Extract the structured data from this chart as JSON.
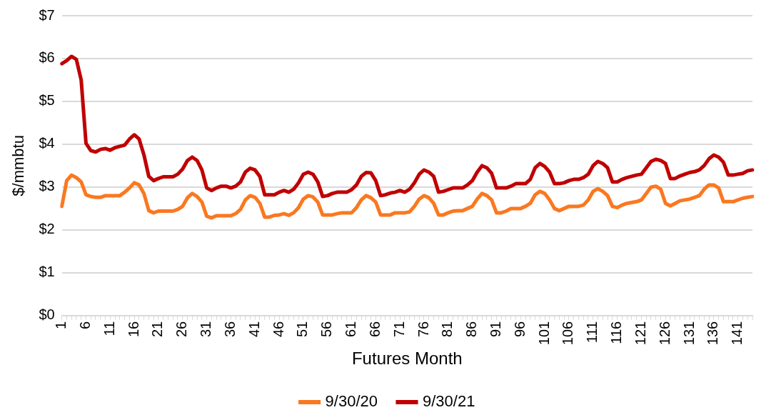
{
  "chart_data": {
    "type": "line",
    "xlabel": "Futures Month",
    "ylabel": "$/mmbtu",
    "categories": [
      "1",
      null,
      null,
      null,
      null,
      "6",
      null,
      null,
      null,
      null,
      "11",
      null,
      null,
      null,
      null,
      "16",
      null,
      null,
      null,
      null,
      "21",
      null,
      null,
      null,
      null,
      "26",
      null,
      null,
      null,
      null,
      "31",
      null,
      null,
      null,
      null,
      "36",
      null,
      null,
      null,
      null,
      "41",
      null,
      null,
      null,
      null,
      "46",
      null,
      null,
      null,
      null,
      "51",
      null,
      null,
      null,
      null,
      "56",
      null,
      null,
      null,
      null,
      "61",
      null,
      null,
      null,
      null,
      "66",
      null,
      null,
      null,
      null,
      "71",
      null,
      null,
      null,
      null,
      "76",
      null,
      null,
      null,
      null,
      "81",
      null,
      null,
      null,
      null,
      "86",
      null,
      null,
      null,
      null,
      "91",
      null,
      null,
      null,
      null,
      "96",
      null,
      null,
      null,
      null,
      "101",
      null,
      null,
      null,
      null,
      "106",
      null,
      null,
      null,
      null,
      "111",
      null,
      null,
      null,
      null,
      "116",
      null,
      null,
      null,
      null,
      "121",
      null,
      null,
      null,
      null,
      "126",
      null,
      null,
      null,
      null,
      "131",
      null,
      null,
      null,
      null,
      "136",
      null,
      null,
      null,
      null,
      "141",
      null,
      null,
      null
    ],
    "series": [
      {
        "name": "9/30/20",
        "color": "#fa7820",
        "values": [
          2.55,
          3.15,
          3.28,
          3.22,
          3.12,
          2.82,
          2.78,
          2.76,
          2.76,
          2.8,
          2.8,
          2.8,
          2.8,
          2.88,
          2.98,
          3.1,
          3.05,
          2.85,
          2.45,
          2.4,
          2.44,
          2.44,
          2.44,
          2.44,
          2.48,
          2.55,
          2.75,
          2.85,
          2.78,
          2.65,
          2.32,
          2.28,
          2.33,
          2.33,
          2.33,
          2.33,
          2.38,
          2.48,
          2.7,
          2.8,
          2.76,
          2.62,
          2.3,
          2.3,
          2.34,
          2.35,
          2.38,
          2.34,
          2.4,
          2.52,
          2.72,
          2.8,
          2.77,
          2.65,
          2.35,
          2.35,
          2.35,
          2.38,
          2.4,
          2.4,
          2.4,
          2.52,
          2.7,
          2.8,
          2.75,
          2.65,
          2.35,
          2.35,
          2.35,
          2.4,
          2.4,
          2.4,
          2.42,
          2.55,
          2.72,
          2.8,
          2.75,
          2.62,
          2.35,
          2.35,
          2.4,
          2.44,
          2.45,
          2.45,
          2.5,
          2.55,
          2.72,
          2.85,
          2.8,
          2.7,
          2.4,
          2.4,
          2.44,
          2.5,
          2.5,
          2.5,
          2.55,
          2.62,
          2.82,
          2.9,
          2.85,
          2.7,
          2.5,
          2.45,
          2.5,
          2.55,
          2.55,
          2.55,
          2.58,
          2.7,
          2.9,
          2.96,
          2.9,
          2.8,
          2.55,
          2.52,
          2.58,
          2.62,
          2.64,
          2.66,
          2.7,
          2.85,
          3.0,
          3.02,
          2.95,
          2.62,
          2.56,
          2.62,
          2.68,
          2.7,
          2.72,
          2.76,
          2.8,
          2.95,
          3.05,
          3.05,
          2.98,
          2.66,
          2.66,
          2.66,
          2.7,
          2.74,
          2.76,
          2.78
        ]
      },
      {
        "name": "9/30/21",
        "color": "#c00000",
        "values": [
          5.88,
          5.95,
          6.05,
          5.98,
          5.5,
          4.02,
          3.85,
          3.82,
          3.88,
          3.9,
          3.86,
          3.92,
          3.95,
          3.98,
          4.12,
          4.22,
          4.12,
          3.75,
          3.25,
          3.15,
          3.2,
          3.24,
          3.24,
          3.24,
          3.3,
          3.42,
          3.62,
          3.7,
          3.62,
          3.4,
          2.98,
          2.92,
          2.98,
          3.02,
          3.02,
          2.98,
          3.02,
          3.12,
          3.35,
          3.44,
          3.4,
          3.25,
          2.82,
          2.82,
          2.82,
          2.88,
          2.92,
          2.88,
          2.95,
          3.1,
          3.3,
          3.35,
          3.3,
          3.12,
          2.78,
          2.8,
          2.85,
          2.88,
          2.88,
          2.88,
          2.94,
          3.05,
          3.25,
          3.34,
          3.33,
          3.15,
          2.8,
          2.82,
          2.86,
          2.88,
          2.92,
          2.88,
          2.95,
          3.1,
          3.3,
          3.4,
          3.35,
          3.25,
          2.88,
          2.9,
          2.94,
          2.98,
          2.98,
          2.98,
          3.05,
          3.15,
          3.35,
          3.5,
          3.45,
          3.32,
          2.98,
          2.98,
          2.98,
          3.02,
          3.08,
          3.08,
          3.08,
          3.18,
          3.45,
          3.55,
          3.48,
          3.35,
          3.08,
          3.08,
          3.1,
          3.15,
          3.18,
          3.18,
          3.22,
          3.3,
          3.5,
          3.6,
          3.55,
          3.45,
          3.12,
          3.12,
          3.18,
          3.22,
          3.25,
          3.28,
          3.3,
          3.45,
          3.6,
          3.65,
          3.62,
          3.55,
          3.2,
          3.2,
          3.26,
          3.3,
          3.34,
          3.36,
          3.4,
          3.5,
          3.66,
          3.75,
          3.7,
          3.58,
          3.28,
          3.28,
          3.3,
          3.32,
          3.38,
          3.4
        ]
      }
    ],
    "ylim": [
      0,
      7
    ],
    "yticks": [
      {
        "value": 0,
        "label": "$0"
      },
      {
        "value": 1,
        "label": "$1"
      },
      {
        "value": 2,
        "label": "$2"
      },
      {
        "value": 3,
        "label": "$3"
      },
      {
        "value": 4,
        "label": "$4"
      },
      {
        "value": 5,
        "label": "$5"
      },
      {
        "value": 6,
        "label": "$6"
      },
      {
        "value": 7,
        "label": "$7"
      }
    ],
    "grid": "y",
    "legend": "bottom",
    "marker": "none",
    "line_style": "solid"
  }
}
